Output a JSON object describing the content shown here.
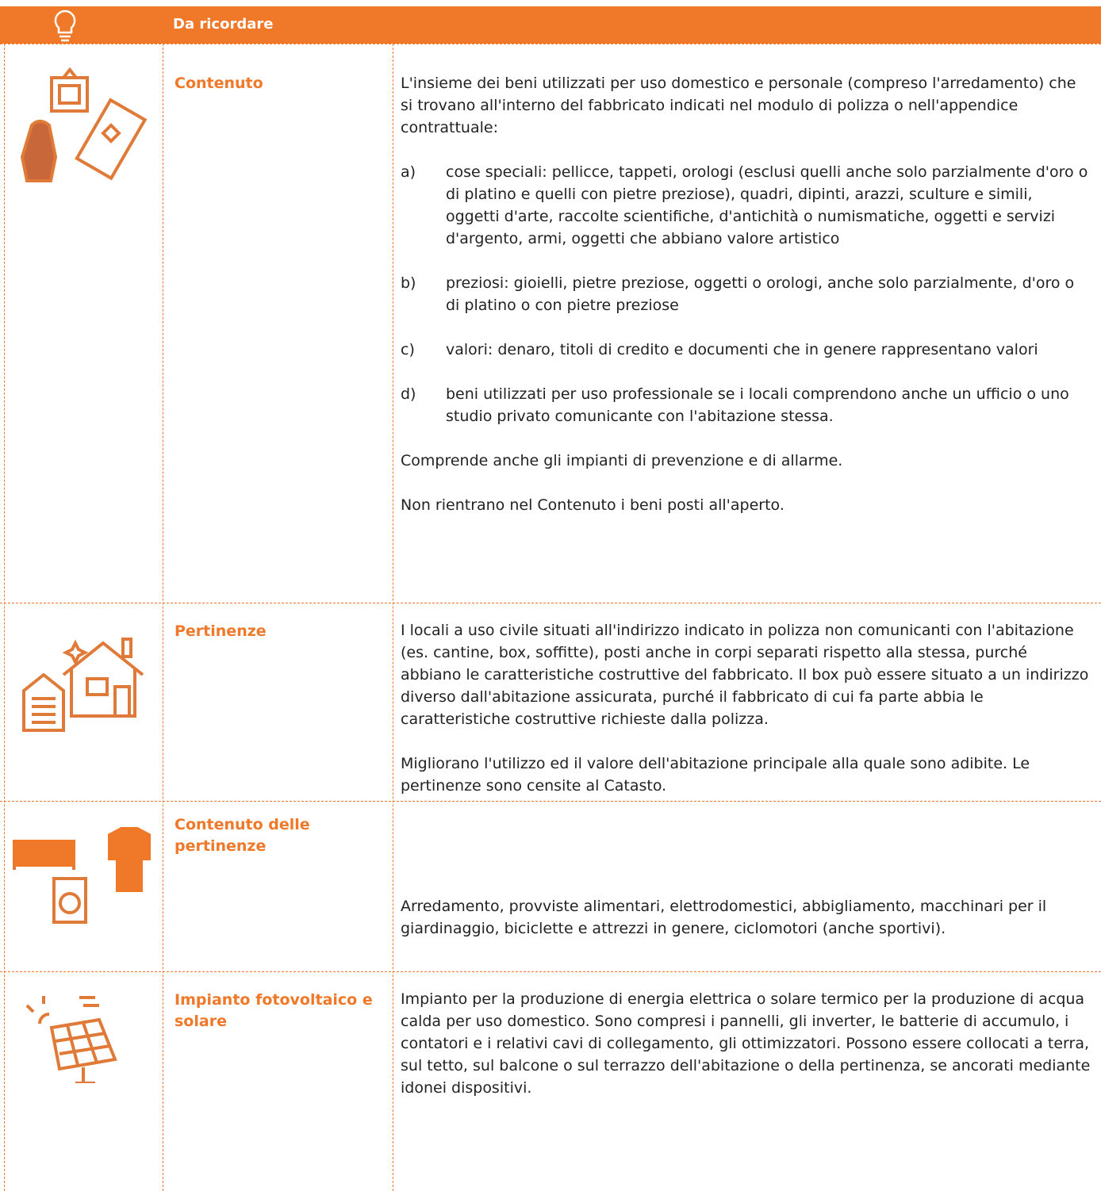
{
  "header": {
    "title": "Da ricordare"
  },
  "rows": [
    {
      "term": "Contenuto",
      "blocks": [
        {
          "text": "L'insieme dei beni utilizzati per uso domestico e personale (compreso l'arredamento) che si trovano all'interno del fabbricato indicati nel modulo di polizza o nell'appendice contrattuale:"
        },
        {
          "label": "a)",
          "text": "cose speciali: pellicce, tappeti, orologi (esclusi quelli anche solo parzialmente d'oro o di platino e quelli con pietre preziose), quadri, dipinti, arazzi, sculture e simili, oggetti d'arte, raccolte scientifiche, d'antichità o numismatiche, oggetti e servizi d'argento, armi, oggetti che abbiano valore artistico"
        },
        {
          "label": "b)",
          "text": "preziosi: gioielli, pietre preziose, oggetti o orologi, anche solo parzialmente, d'oro o di platino o con pietre preziose"
        },
        {
          "label": "c)",
          "text": "valori: denaro, titoli di credito e documenti che in genere rappresentano valori"
        },
        {
          "label": "d)",
          "text": "beni utilizzati per uso professionale se i locali comprendono anche un ufficio o uno studio privato comunicante con l'abitazione stessa."
        },
        {
          "text": "Comprende anche gli impianti di prevenzione e di allarme."
        },
        {
          "text": "Non rientrano nel Contenuto i beni posti all'aperto."
        }
      ]
    },
    {
      "term": "Pertinenze",
      "blocks": [
        {
          "text": "I locali a uso civile situati all'indirizzo indicato in polizza non comunicanti con l'abitazione (es. cantine, box, soffitte), posti anche in corpi separati rispetto alla stessa, purché abbiano le caratteristiche costruttive del fabbricato. Il box può essere situato a un indirizzo diverso dall'abitazione assicurata, purché il fabbricato di cui fa parte abbia le caratteristiche costruttive richieste dalla polizza."
        },
        {
          "text": "Migliorano l'utilizzo ed il valore dell'abitazione principale alla quale sono adibite. Le pertinenze sono censite al Catasto."
        }
      ]
    },
    {
      "term": "Contenuto delle pertinenze",
      "blocks": [
        {
          "text": "Arredamento, provviste alimentari, elettrodomestici, abbigliamento, macchinari per il giardinaggio, biciclette e attrezzi in genere, ciclomotori (anche sportivi)."
        }
      ]
    },
    {
      "term": "Impianto fotovoltaico e solare",
      "blocks": [
        {
          "text": "Impianto per la produzione di energia elettrica o solare termico per la produzione di acqua calda per uso domestico. Sono compresi i pannelli, gli inverter, le batterie di accumulo, i contatori e i relativi cavi di collegamento, gli ottimizzatori. Possono essere collocati a terra, sul tetto, sul balcone o sul terrazzo dell'abitazione o della pertinenza, se ancorati mediante idonei dispositivi."
        }
      ]
    }
  ]
}
